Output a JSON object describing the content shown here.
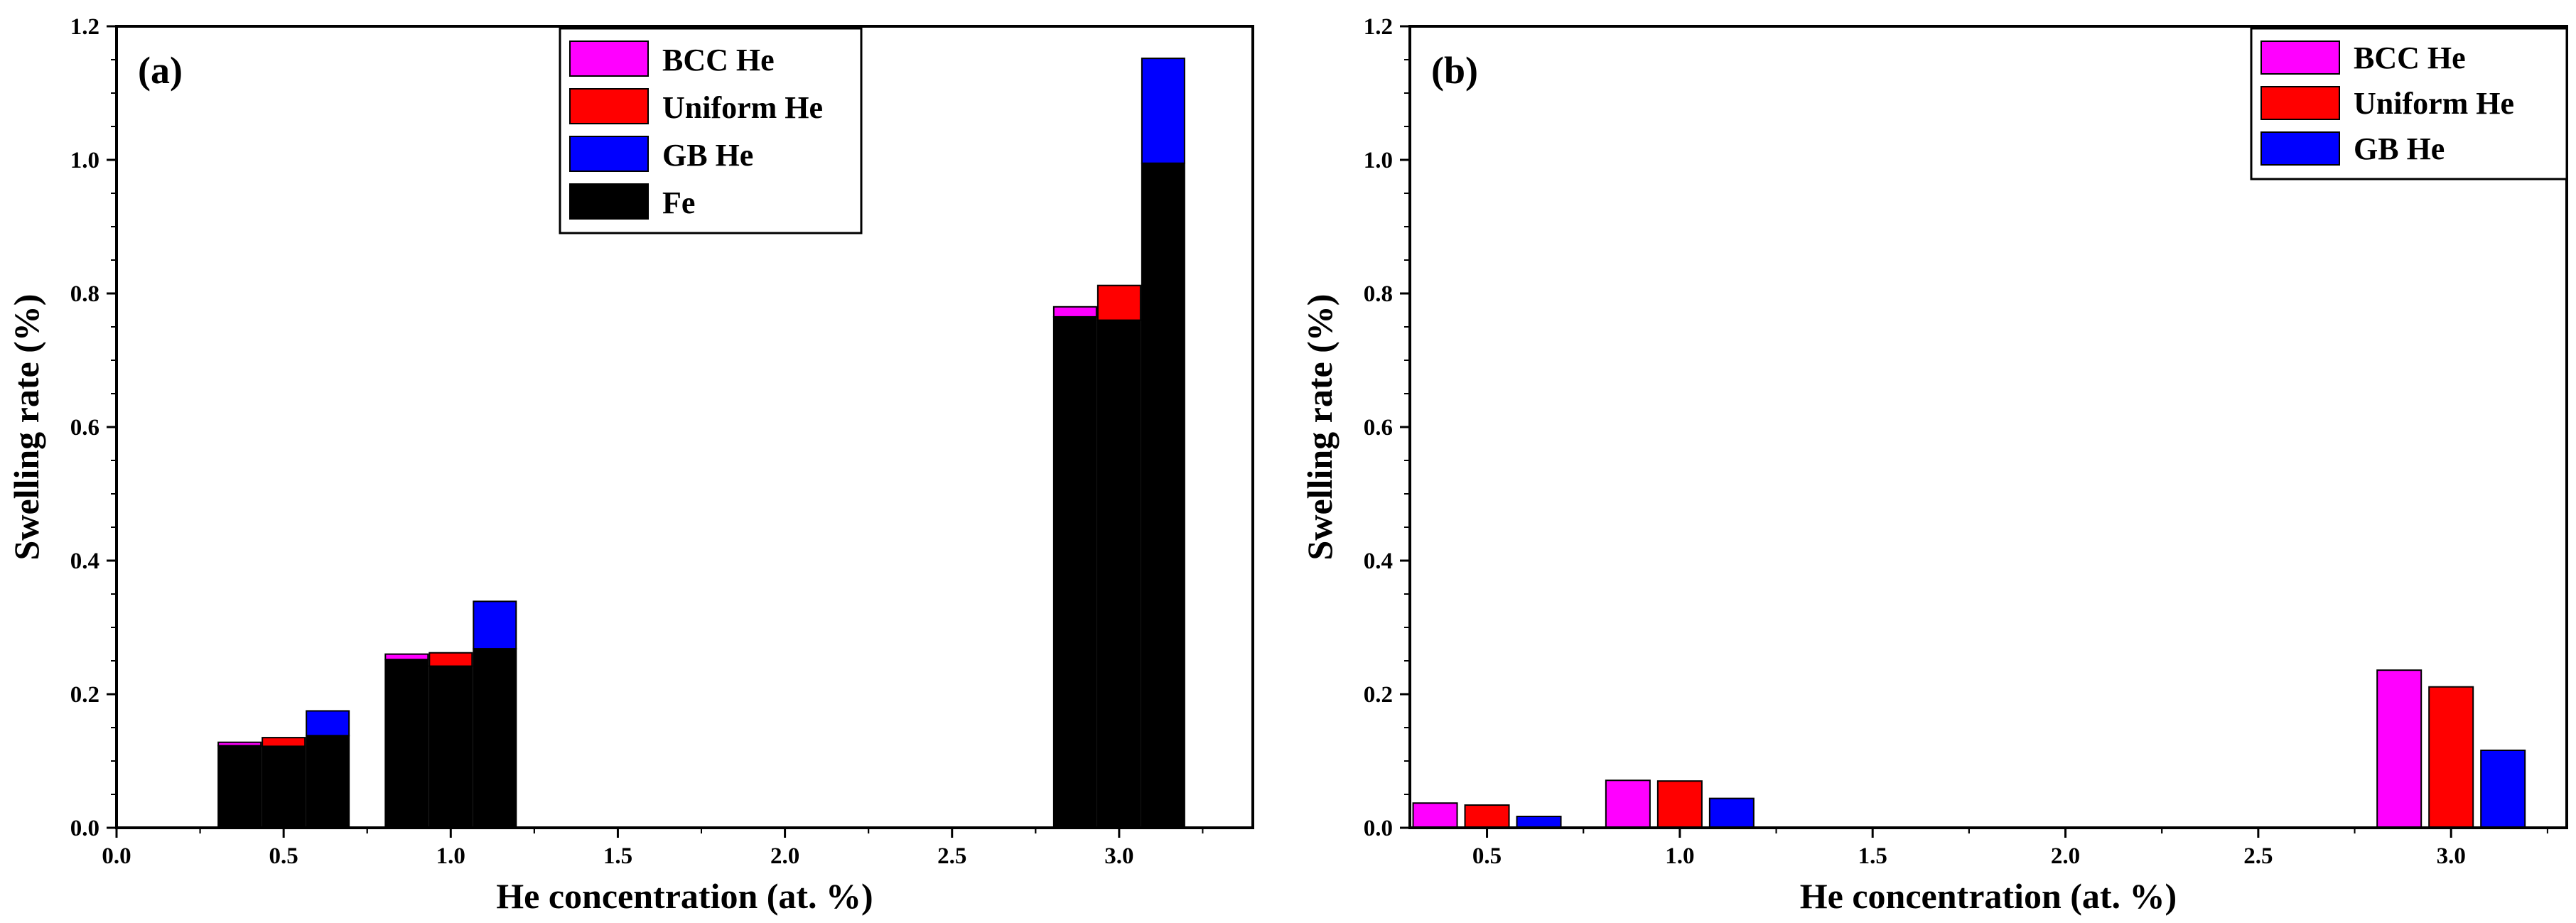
{
  "chart_data": [
    {
      "panel_label": "(a)",
      "type": "bar",
      "stacked": true,
      "xlabel": "He concentration (at. %)",
      "ylabel": "Swelling rate (%)",
      "xlim": [
        0.0,
        3.4
      ],
      "ylim": [
        0.0,
        1.2
      ],
      "x_ticks": [
        "0.0",
        "0.5",
        "1.0",
        "1.5",
        "2.0",
        "2.5",
        "3.0"
      ],
      "y_ticks": [
        "0.0",
        "0.2",
        "0.4",
        "0.6",
        "0.8",
        "1.0",
        "1.2"
      ],
      "legend_position": "top-center",
      "legend": [
        {
          "label": "BCC He",
          "color": "#ff00ff"
        },
        {
          "label": "Uniform He",
          "color": "#ff0000"
        },
        {
          "label": "GB He",
          "color": "#0000ff"
        },
        {
          "label": "Fe",
          "color": "#000000"
        }
      ],
      "groups": [
        {
          "x": 0.5,
          "bars": [
            {
              "case": "BCC He",
              "color": "#ff00ff",
              "fe": 0.123,
              "he": 0.005
            },
            {
              "case": "Uniform He",
              "color": "#ff0000",
              "fe": 0.122,
              "he": 0.013
            },
            {
              "case": "GB He",
              "color": "#0000ff",
              "fe": 0.138,
              "he": 0.037
            }
          ]
        },
        {
          "x": 1.0,
          "bars": [
            {
              "case": "BCC He",
              "color": "#ff00ff",
              "fe": 0.252,
              "he": 0.008
            },
            {
              "case": "Uniform He",
              "color": "#ff0000",
              "fe": 0.242,
              "he": 0.02
            },
            {
              "case": "GB He",
              "color": "#0000ff",
              "fe": 0.268,
              "he": 0.071
            }
          ]
        },
        {
          "x": 3.0,
          "bars": [
            {
              "case": "BCC He",
              "color": "#ff00ff",
              "fe": 0.765,
              "he": 0.015
            },
            {
              "case": "Uniform He",
              "color": "#ff0000",
              "fe": 0.76,
              "he": 0.052
            },
            {
              "case": "GB He",
              "color": "#0000ff",
              "fe": 0.995,
              "he": 0.157
            }
          ]
        }
      ]
    },
    {
      "panel_label": "(b)",
      "type": "bar",
      "stacked": false,
      "xlabel": "He concentration (at. %)",
      "ylabel": "Swelling rate (%)",
      "xlim": [
        0.3,
        3.3
      ],
      "ylim": [
        0.0,
        1.2
      ],
      "x_ticks": [
        "0.5",
        "1.0",
        "1.5",
        "2.0",
        "2.5",
        "3.0"
      ],
      "y_ticks": [
        "0.0",
        "0.2",
        "0.4",
        "0.6",
        "0.8",
        "1.0",
        "1.2"
      ],
      "legend_position": "top-right",
      "legend": [
        {
          "label": "BCC He",
          "color": "#ff00ff"
        },
        {
          "label": "Uniform He",
          "color": "#ff0000"
        },
        {
          "label": "GB He",
          "color": "#0000ff"
        }
      ],
      "groups": [
        {
          "x": 0.5,
          "bars": [
            {
              "case": "BCC He",
              "color": "#ff00ff",
              "value": 0.037
            },
            {
              "case": "Uniform He",
              "color": "#ff0000",
              "value": 0.034
            },
            {
              "case": "GB He",
              "color": "#0000ff",
              "value": 0.017
            }
          ]
        },
        {
          "x": 1.0,
          "bars": [
            {
              "case": "BCC He",
              "color": "#ff00ff",
              "value": 0.071
            },
            {
              "case": "Uniform He",
              "color": "#ff0000",
              "value": 0.07
            },
            {
              "case": "GB He",
              "color": "#0000ff",
              "value": 0.044
            }
          ]
        },
        {
          "x": 3.0,
          "bars": [
            {
              "case": "BCC He",
              "color": "#ff00ff",
              "value": 0.236
            },
            {
              "case": "Uniform He",
              "color": "#ff0000",
              "value": 0.211
            },
            {
              "case": "GB He",
              "color": "#0000ff",
              "value": 0.116
            }
          ]
        }
      ]
    }
  ]
}
